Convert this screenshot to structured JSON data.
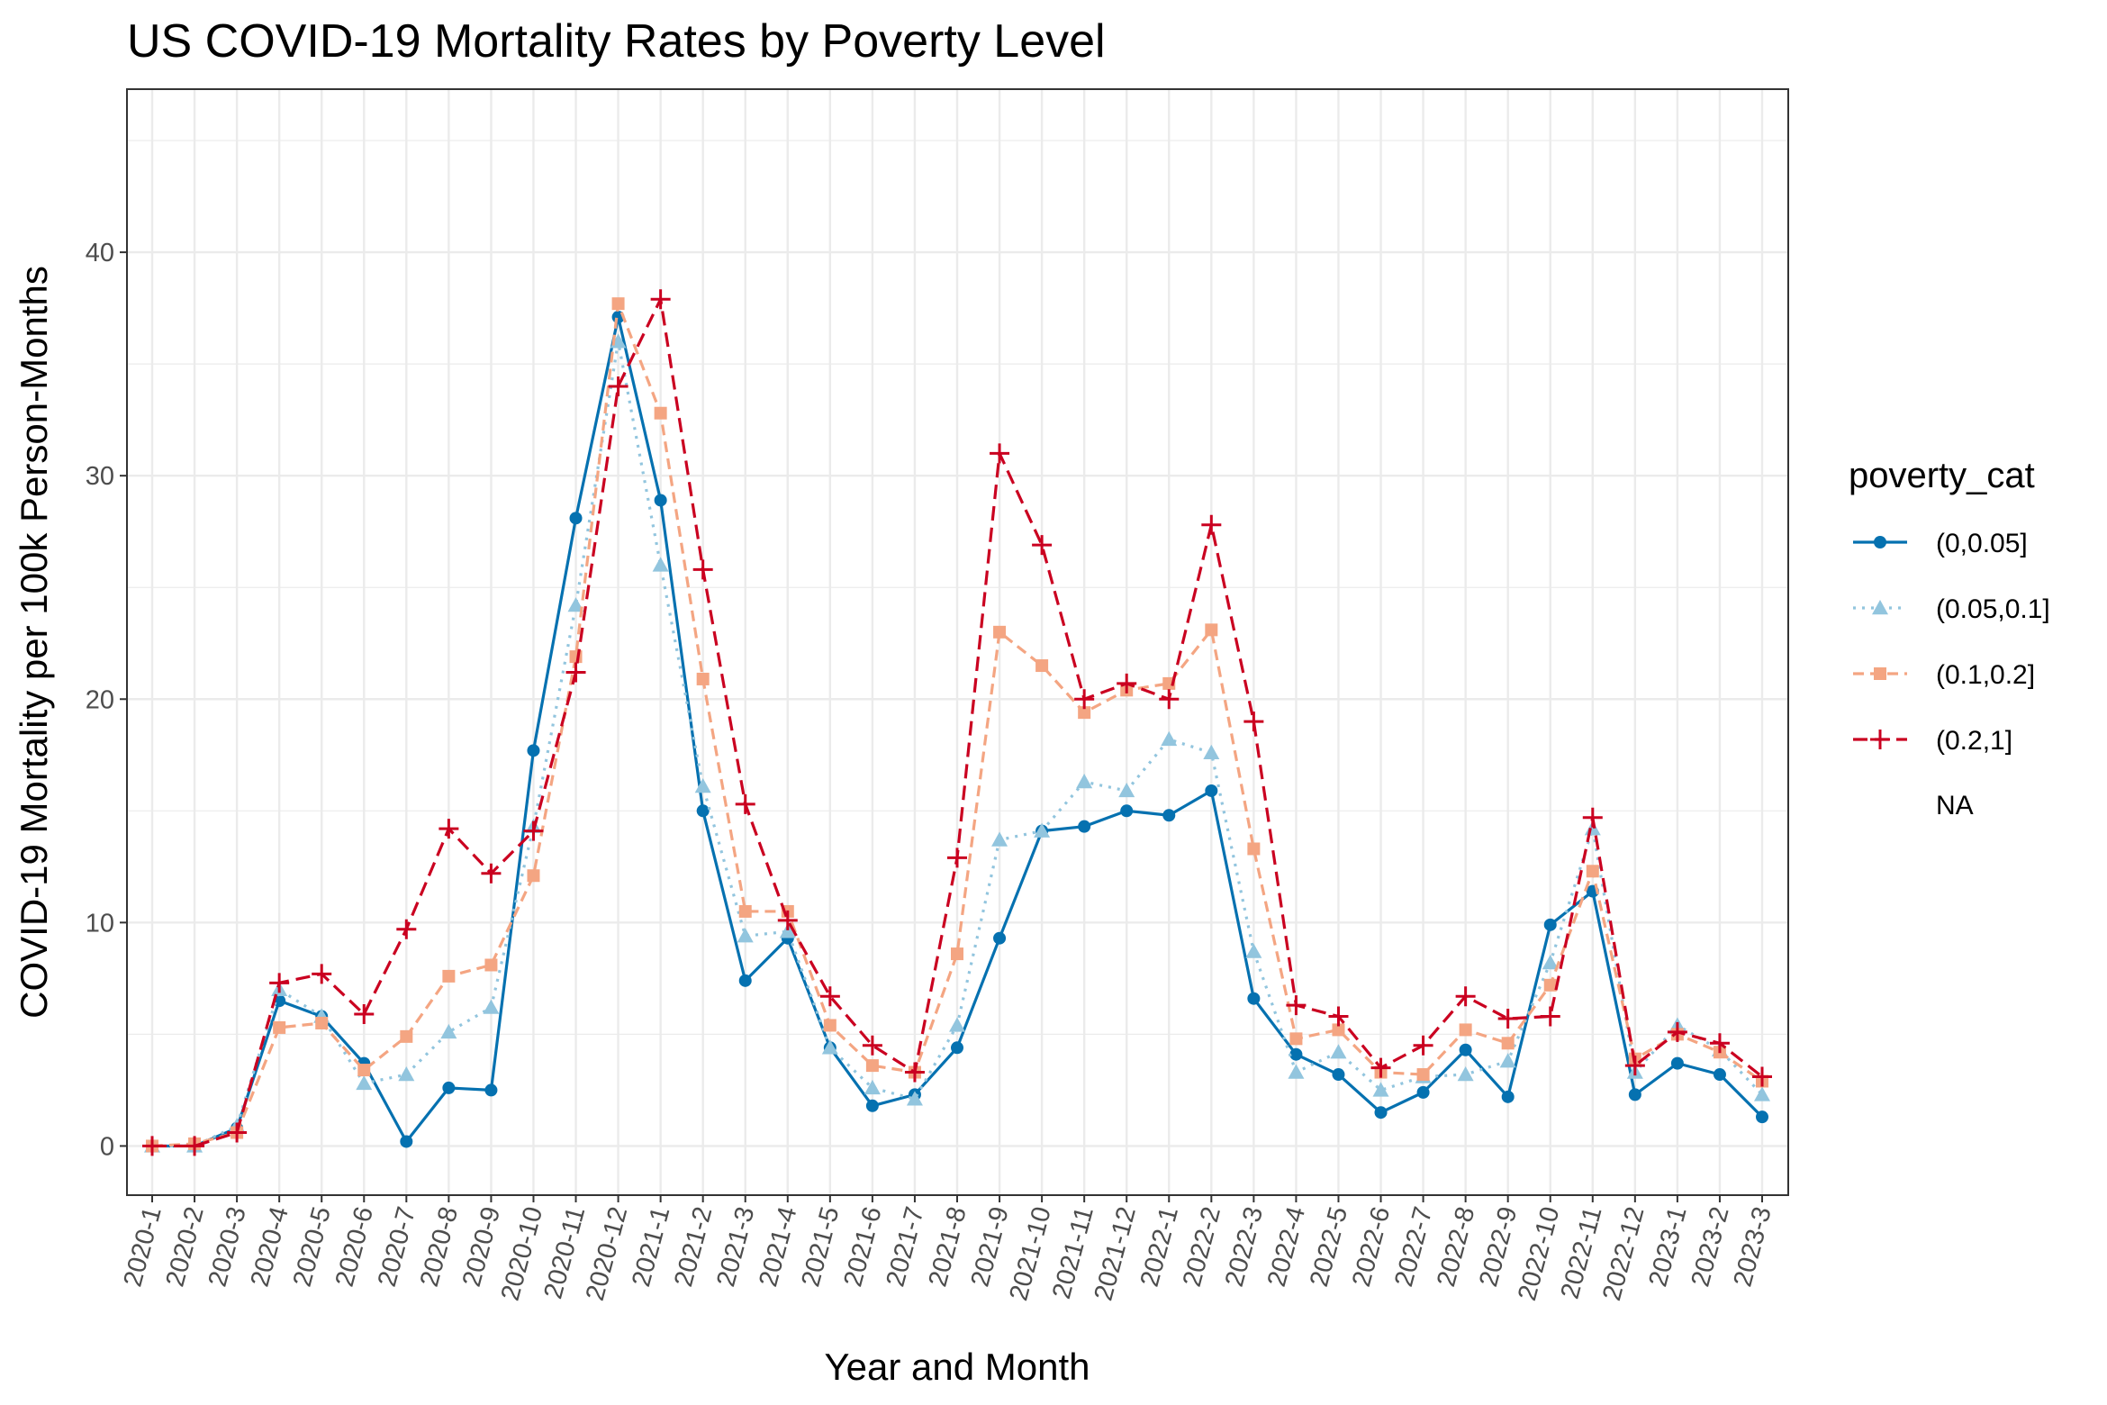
{
  "chart_data": {
    "type": "line",
    "title": "US COVID-19 Mortality Rates by Poverty Level",
    "xlabel": "Year and Month",
    "ylabel": "COVID-19 Mortality per 100k Person-Months",
    "ylim": [
      -2.2,
      47.3
    ],
    "yticks": [
      0,
      10,
      20,
      30,
      40
    ],
    "grid": true,
    "legend_position": "right",
    "legend_title": "poverty_cat",
    "categories": [
      "2020-1",
      "2020-2",
      "2020-3",
      "2020-4",
      "2020-5",
      "2020-6",
      "2020-7",
      "2020-8",
      "2020-9",
      "2020-10",
      "2020-11",
      "2020-12",
      "2021-1",
      "2021-2",
      "2021-3",
      "2021-4",
      "2021-5",
      "2021-6",
      "2021-7",
      "2021-8",
      "2021-9",
      "2021-10",
      "2021-11",
      "2021-12",
      "2022-1",
      "2022-2",
      "2022-3",
      "2022-4",
      "2022-5",
      "2022-6",
      "2022-7",
      "2022-8",
      "2022-9",
      "2022-10",
      "2022-11",
      "2022-12",
      "2023-1",
      "2023-2",
      "2023-3"
    ],
    "series": [
      {
        "name": "(0,0.05]",
        "color": "#0571b0",
        "dash": "solid",
        "marker": "circle",
        "values": [
          0,
          0,
          0.8,
          6.5,
          5.8,
          3.7,
          0.2,
          2.6,
          2.5,
          17.7,
          28.1,
          37.1,
          28.9,
          15.0,
          7.4,
          9.3,
          4.4,
          1.8,
          2.3,
          4.4,
          9.3,
          14.1,
          14.3,
          15.0,
          14.8,
          15.9,
          6.6,
          4.1,
          3.2,
          1.5,
          2.4,
          4.3,
          2.2,
          9.9,
          11.4,
          2.3,
          3.7,
          3.2,
          1.3
        ]
      },
      {
        "name": "(0.05,0.1]",
        "color": "#92c5de",
        "dash": "dotted",
        "marker": "triangle",
        "values": [
          0,
          0,
          0.9,
          7.0,
          5.8,
          2.8,
          3.2,
          5.1,
          6.2,
          14.3,
          24.2,
          36.0,
          26.0,
          16.1,
          9.4,
          9.6,
          4.4,
          2.6,
          2.1,
          5.4,
          13.7,
          14.1,
          16.3,
          15.9,
          18.2,
          17.6,
          8.7,
          3.3,
          4.2,
          2.5,
          3.1,
          3.2,
          3.8,
          8.2,
          14.2,
          3.3,
          5.4,
          4.3,
          2.3
        ]
      },
      {
        "name": "(0.1,0.2]",
        "color": "#f4a582",
        "dash": "dashed",
        "marker": "square",
        "values": [
          0,
          0.1,
          0.6,
          5.3,
          5.5,
          3.4,
          4.9,
          7.6,
          8.1,
          12.1,
          21.9,
          37.7,
          32.8,
          20.9,
          10.5,
          10.5,
          5.4,
          3.6,
          3.3,
          8.6,
          23.0,
          21.5,
          19.4,
          20.4,
          20.7,
          23.1,
          13.3,
          4.8,
          5.2,
          3.3,
          3.2,
          5.2,
          4.6,
          7.2,
          12.3,
          3.9,
          5.0,
          4.2,
          2.9
        ]
      },
      {
        "name": "(0.2,1]",
        "color": "#ca0020",
        "dash": "longdash",
        "marker": "plus",
        "values": [
          0,
          0,
          0.6,
          7.3,
          7.7,
          5.9,
          9.7,
          14.2,
          12.2,
          14.1,
          21.2,
          34.0,
          37.9,
          25.8,
          15.3,
          10.1,
          6.7,
          4.5,
          3.3,
          12.9,
          31.0,
          26.9,
          20.0,
          20.7,
          20.0,
          27.8,
          19.0,
          6.3,
          5.8,
          3.5,
          4.5,
          6.7,
          5.7,
          5.8,
          14.7,
          3.6,
          5.1,
          4.6,
          3.1
        ]
      }
    ],
    "legend_extra": "NA"
  }
}
